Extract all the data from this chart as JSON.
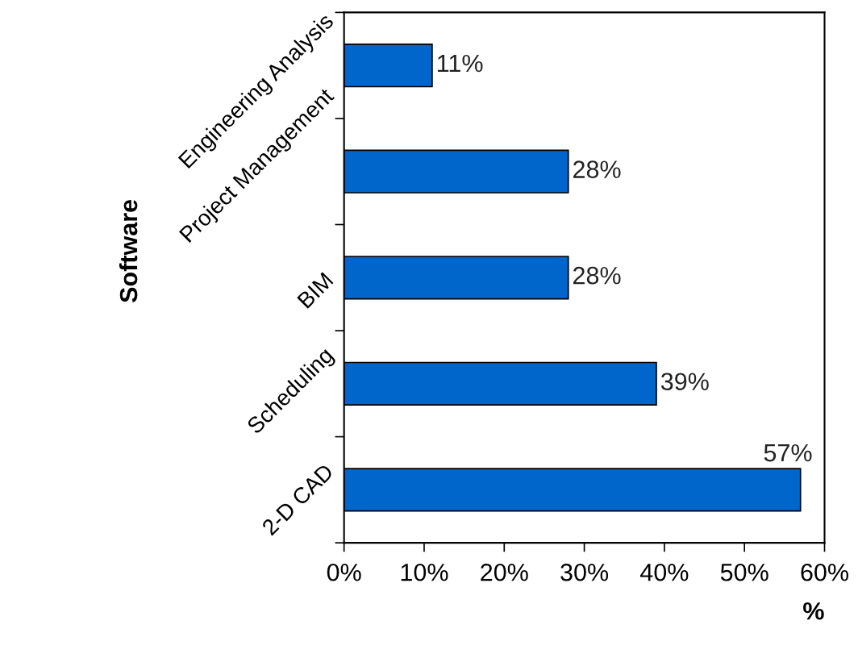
{
  "chart_data": {
    "type": "bar",
    "orientation": "horizontal",
    "xlabel": "%",
    "ylabel": "Software",
    "categories": [
      "Engineering Analysis",
      "Project Management",
      "BIM",
      "Scheduling",
      "2-D CAD"
    ],
    "values": [
      11,
      28,
      28,
      39,
      57
    ],
    "color": "#0066cc",
    "value_labels": [
      "11%",
      "28%",
      "28%",
      "39%",
      "57%"
    ],
    "xlim": [
      0,
      60
    ],
    "xticks": [
      {
        "value": 0,
        "label": "0%"
      },
      {
        "value": 10,
        "label": "10%"
      },
      {
        "value": 20,
        "label": "20%"
      },
      {
        "value": 30,
        "label": "30%"
      },
      {
        "value": 40,
        "label": "40%"
      },
      {
        "value": 50,
        "label": "50%"
      },
      {
        "value": 60,
        "label": "60%"
      }
    ],
    "grid": false
  }
}
